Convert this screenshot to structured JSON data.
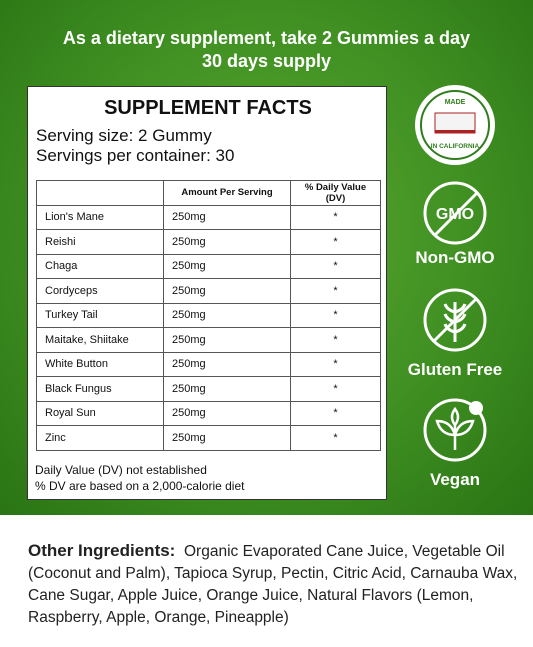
{
  "header": {
    "line1": "As a dietary supplement, take 2 Gummies a day",
    "line2": "30 days supply"
  },
  "facts": {
    "title": "SUPPLEMENT FACTS",
    "serving_size": "Serving size: 2 Gummy",
    "servings_per_container": "Servings per container: 30",
    "columns": [
      "Amount Per Serving",
      "% Daily Value (DV)"
    ],
    "rows": [
      [
        "Lion's Mane",
        "250mg",
        "*"
      ],
      [
        "Reishi",
        "250mg",
        "*"
      ],
      [
        "Chaga",
        "250mg",
        "*"
      ],
      [
        "Cordyceps",
        "250mg",
        "*"
      ],
      [
        "Turkey Tail",
        "250mg",
        "*"
      ],
      [
        "Maitake, Shiitake",
        "250mg",
        "*"
      ],
      [
        "White Button",
        "250mg",
        "*"
      ],
      [
        "Black Fungus",
        "250mg",
        "*"
      ],
      [
        "Royal Sun",
        "250mg",
        "*"
      ],
      [
        "Zinc",
        "250mg",
        "*"
      ]
    ],
    "footnotes": [
      "Daily Value (DV) not established",
      "% DV are based on a 2,000-calorie diet"
    ]
  },
  "badges": {
    "made_top": "MADE",
    "made_bottom": "IN CALIFORNIA",
    "gmo_icon": "GMO",
    "non_gmo": "Non-GMO",
    "gluten_free": "Gluten Free",
    "vegan": "Vegan"
  },
  "other_ingredients": {
    "label": "Other Ingredients:",
    "text": "Organic Evaporated Cane Juice, Vegetable Oil (Coconut and Palm), Tapioca Syrup, Pectin, Citric Acid, Carnauba Wax, Cane Sugar, Apple Juice, Orange Juice, Natural Flavors  (Lemon, Raspberry, Apple, Orange, Pineapple)"
  }
}
